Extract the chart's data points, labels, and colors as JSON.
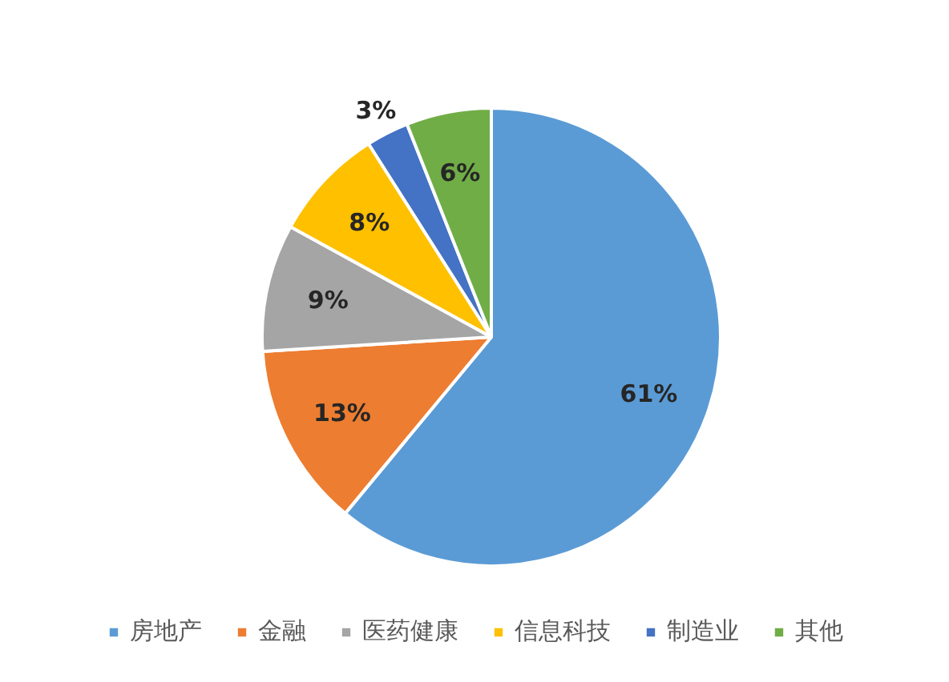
{
  "chart_data": {
    "type": "pie",
    "categories": [
      "房地产",
      "金融",
      "医药健康",
      "信息科技",
      "制造业",
      "其他"
    ],
    "values": [
      61,
      13,
      9,
      8,
      3,
      6
    ],
    "colors": [
      "#5b9bd5",
      "#ed7d31",
      "#a5a5a5",
      "#ffc000",
      "#4472c4",
      "#70ad47"
    ],
    "value_labels": [
      "61%",
      "13%",
      "9%",
      "8%",
      "3%",
      "6%"
    ],
    "legend": "bottom"
  }
}
